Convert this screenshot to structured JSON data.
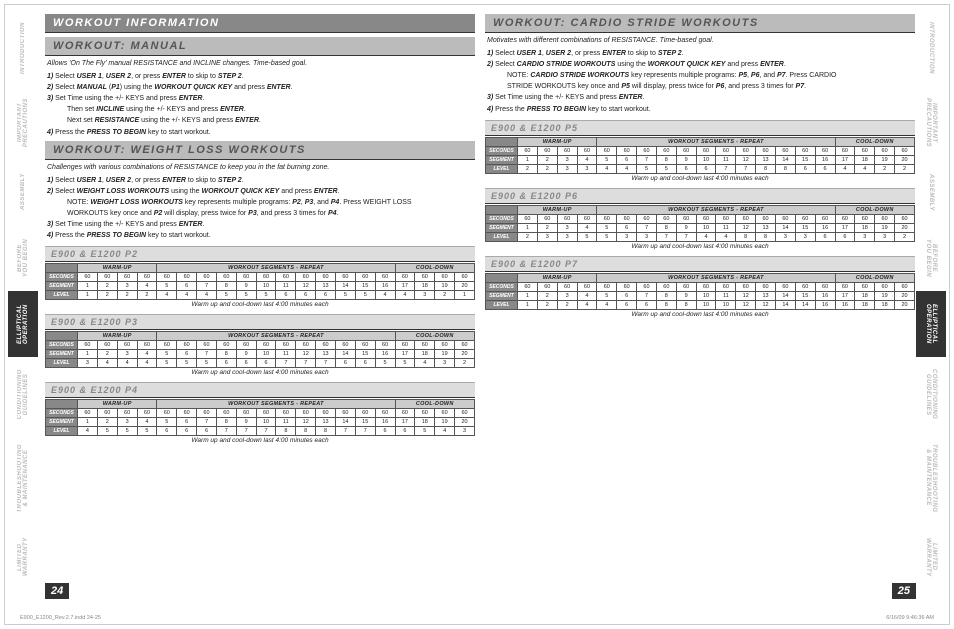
{
  "sidetabs_left": [
    {
      "label": "INTRODUCTION",
      "active": false
    },
    {
      "label": "IMPORTANT\nPRECAUTIONS",
      "active": false
    },
    {
      "label": "ASSEMBLY",
      "active": false
    },
    {
      "label": "BEFORE\nYOU BEGIN",
      "active": false
    },
    {
      "label": "ELLIPTICAL\nOPERATION",
      "active": true
    },
    {
      "label": "CONDITIONING\nGUIDELINES",
      "active": false
    },
    {
      "label": "TROUBLESHOOTING\n& MAINTENANCE",
      "active": false
    },
    {
      "label": "LIMITED\nWARRANTY",
      "active": false
    }
  ],
  "sidetabs_right": [
    {
      "label": "INTRODUCTION",
      "active": false
    },
    {
      "label": "IMPORTANT\nPRECAUTIONS",
      "active": false
    },
    {
      "label": "ASSEMBLY",
      "active": false
    },
    {
      "label": "BEFORE\nYOU BEGIN",
      "active": false
    },
    {
      "label": "ELLIPTICAL\nOPERATION",
      "active": true
    },
    {
      "label": "CONDITIONING\nGUIDELINES",
      "active": false
    },
    {
      "label": "TROUBLESHOOTING\n& MAINTENANCE",
      "active": false
    },
    {
      "label": "LIMITED\nWARRANTY",
      "active": false
    }
  ],
  "left_page": {
    "h1": "WORKOUT INFORMATION",
    "s1_prefix": "WORKOUT: ",
    "s1_title": "MANUAL",
    "s1_intro": "Allows 'On The Fly' manual RESISTANCE and INCLINE changes. Time-based goal.",
    "s1_steps": [
      "1) Select USER 1, USER 2, or press ENTER to skip to STEP 2.",
      "2) Select MANUAL (P1) using the WORKOUT QUICK KEY and press ENTER.",
      "3) Set Time using the +/- KEYS and press ENTER.",
      "   Then set INCLINE using the +/- KEYS and press ENTER.",
      "   Next set RESISTANCE using the +/- KEYS and press ENTER.",
      "4) Press the PRESS TO BEGIN key to start workout."
    ],
    "s2_prefix": "WORKOUT: ",
    "s2_title": "WEIGHT LOSS WORKOUTS",
    "s2_intro": "Challenges with various combinations of RESISTANCE to keep you in the fat burning zone.",
    "s2_steps": [
      "1) Select USER 1, USER 2, or press ENTER to skip to STEP 2.",
      "2) Select WEIGHT LOSS WORKOUTS using the WORKOUT QUICK KEY and press ENTER.",
      "   NOTE: WEIGHT LOSS WORKOUTS key represents multiple programs: P2, P3, and P4. Press WEIGHT LOSS",
      "   WORKOUTS key once and P2 will display, press twice for P3, and press 3 times for P4.",
      "3) Set Time using the +/- KEYS and press ENTER.",
      "4) Press the PRESS TO BEGIN key to start workout."
    ],
    "tables": [
      {
        "title": "E900 & E1200 P2",
        "seconds": [
          "60",
          "60",
          "60",
          "60",
          "60",
          "60",
          "60",
          "60",
          "60",
          "60",
          "60",
          "60",
          "60",
          "60",
          "60",
          "60",
          "60",
          "60",
          "60",
          "60"
        ],
        "segment": [
          "1",
          "2",
          "3",
          "4",
          "5",
          "6",
          "7",
          "8",
          "9",
          "10",
          "11",
          "12",
          "13",
          "14",
          "15",
          "16",
          "17",
          "18",
          "19",
          "20"
        ],
        "level": [
          "1",
          "2",
          "2",
          "2",
          "4",
          "4",
          "4",
          "5",
          "5",
          "5",
          "6",
          "6",
          "6",
          "5",
          "5",
          "4",
          "4",
          "3",
          "2",
          "1"
        ]
      },
      {
        "title": "E900 & E1200 P3",
        "seconds": [
          "60",
          "60",
          "60",
          "60",
          "60",
          "60",
          "60",
          "60",
          "60",
          "60",
          "60",
          "60",
          "60",
          "60",
          "60",
          "60",
          "60",
          "60",
          "60",
          "60"
        ],
        "segment": [
          "1",
          "2",
          "3",
          "4",
          "5",
          "6",
          "7",
          "8",
          "9",
          "10",
          "11",
          "12",
          "13",
          "14",
          "15",
          "16",
          "17",
          "18",
          "19",
          "20"
        ],
        "level": [
          "3",
          "4",
          "4",
          "4",
          "5",
          "5",
          "5",
          "6",
          "6",
          "6",
          "7",
          "7",
          "7",
          "6",
          "6",
          "5",
          "5",
          "4",
          "3",
          "2"
        ]
      },
      {
        "title": "E900 & E1200 P4",
        "seconds": [
          "60",
          "60",
          "60",
          "60",
          "60",
          "60",
          "60",
          "60",
          "60",
          "60",
          "60",
          "60",
          "60",
          "60",
          "60",
          "60",
          "60",
          "60",
          "60",
          "60"
        ],
        "segment": [
          "1",
          "2",
          "3",
          "4",
          "5",
          "6",
          "7",
          "8",
          "9",
          "10",
          "11",
          "12",
          "13",
          "14",
          "15",
          "16",
          "17",
          "18",
          "19",
          "20"
        ],
        "level": [
          "4",
          "5",
          "5",
          "5",
          "6",
          "6",
          "6",
          "7",
          "7",
          "7",
          "8",
          "8",
          "8",
          "7",
          "7",
          "6",
          "6",
          "5",
          "4",
          "3"
        ]
      }
    ],
    "caption": "Warm up and cool-down last 4:00 minutes each",
    "pagenum": "24"
  },
  "right_page": {
    "s1_prefix": "WORKOUT: ",
    "s1_title": "CARDIO STRIDE WORKOUTS",
    "s1_intro": "Motivates with different combinations of RESISTANCE. Time-based goal.",
    "s1_steps": [
      "1) Select USER 1, USER 2, or press ENTER to skip to STEP 2.",
      "2) Select CARDIO STRIDE WORKOUTS using the WORKOUT QUICK KEY and press ENTER.",
      "   NOTE: CARDIO STRIDE WORKOUTS key represents multiple programs: P5, P6, and P7. Press CARDIO",
      "   STRIDE WORKOUTS key once and P5 will display, press twice for P6, and press 3 times for P7.",
      "3) Set Time using the +/- KEYS and press ENTER.",
      "4) Press the PRESS TO BEGIN key to start workout."
    ],
    "tables": [
      {
        "title": "E900 & E1200 P5",
        "seconds": [
          "60",
          "60",
          "60",
          "60",
          "60",
          "60",
          "60",
          "60",
          "60",
          "60",
          "60",
          "60",
          "60",
          "60",
          "60",
          "60",
          "60",
          "60",
          "60",
          "60"
        ],
        "segment": [
          "1",
          "2",
          "3",
          "4",
          "5",
          "6",
          "7",
          "8",
          "9",
          "10",
          "11",
          "12",
          "13",
          "14",
          "15",
          "16",
          "17",
          "18",
          "19",
          "20"
        ],
        "level": [
          "2",
          "2",
          "3",
          "3",
          "4",
          "4",
          "5",
          "5",
          "6",
          "6",
          "7",
          "7",
          "8",
          "8",
          "6",
          "6",
          "4",
          "4",
          "2",
          "2"
        ]
      },
      {
        "title": "E900 & E1200 P6",
        "seconds": [
          "60",
          "60",
          "60",
          "60",
          "60",
          "60",
          "60",
          "60",
          "60",
          "60",
          "60",
          "60",
          "60",
          "60",
          "60",
          "60",
          "60",
          "60",
          "60",
          "60"
        ],
        "segment": [
          "1",
          "2",
          "3",
          "4",
          "5",
          "6",
          "7",
          "8",
          "9",
          "10",
          "11",
          "12",
          "13",
          "14",
          "15",
          "16",
          "17",
          "18",
          "19",
          "20"
        ],
        "level": [
          "2",
          "3",
          "3",
          "5",
          "5",
          "3",
          "3",
          "7",
          "7",
          "4",
          "4",
          "8",
          "8",
          "3",
          "3",
          "6",
          "6",
          "3",
          "3",
          "2"
        ]
      },
      {
        "title": "E900 & E1200 P7",
        "seconds": [
          "60",
          "60",
          "60",
          "60",
          "60",
          "60",
          "60",
          "60",
          "60",
          "60",
          "60",
          "60",
          "60",
          "60",
          "60",
          "60",
          "60",
          "60",
          "60",
          "60"
        ],
        "segment": [
          "1",
          "2",
          "3",
          "4",
          "5",
          "6",
          "7",
          "8",
          "9",
          "10",
          "11",
          "12",
          "13",
          "14",
          "15",
          "16",
          "17",
          "18",
          "19",
          "20"
        ],
        "level": [
          "1",
          "2",
          "2",
          "4",
          "4",
          "6",
          "6",
          "8",
          "8",
          "10",
          "10",
          "12",
          "12",
          "14",
          "14",
          "16",
          "16",
          "18",
          "18",
          "20"
        ]
      }
    ],
    "caption": "Warm up and cool-down last 4:00 minutes each",
    "pagenum": "25"
  },
  "groups": {
    "warmup": "WARM-UP",
    "workout": "WORKOUT SEGMENTS - REPEAT",
    "cooldown": "COOL-DOWN"
  },
  "rowlabels": {
    "seconds": "SECONDS",
    "segment": "SEGMENT",
    "level": "LEVEL"
  },
  "footer_left": "E900_E1200_Rev.2.7.indd   24-25",
  "footer_right": "6/16/09   9:46:36 AM"
}
